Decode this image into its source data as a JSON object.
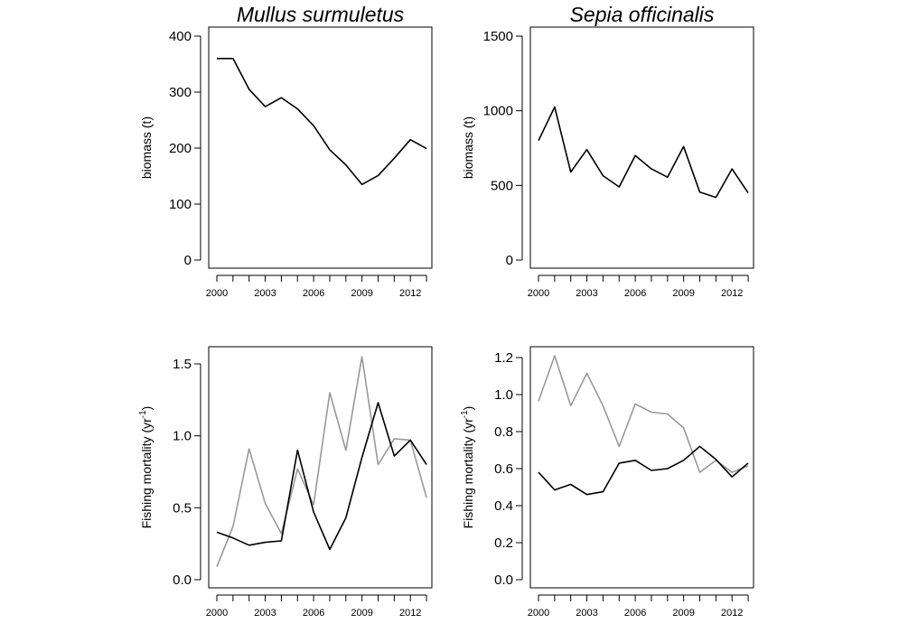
{
  "chart_data": [
    {
      "type": "line",
      "title": "Mullus surmuletus",
      "ylabel": "biomass (t)",
      "ylabel_sup": "",
      "ylabel_after": "",
      "x": [
        2000,
        2001,
        2002,
        2003,
        2004,
        2005,
        2006,
        2007,
        2008,
        2009,
        2010,
        2011,
        2012,
        2013
      ],
      "x_tick_labels": [
        "2000",
        "2003",
        "2006",
        "2009",
        "2012"
      ],
      "y_ticks": [
        0,
        100,
        200,
        300,
        400
      ],
      "y_tick_labels": [
        "0",
        "100",
        "200",
        "300",
        "400"
      ],
      "ylim": [
        0,
        400
      ],
      "series": [
        {
          "color": "#000000",
          "values": [
            360,
            360,
            305,
            274,
            290,
            270,
            240,
            197,
            170,
            135,
            151,
            182,
            215,
            199
          ]
        }
      ]
    },
    {
      "type": "line",
      "title": "Sepia officinalis",
      "ylabel": "biomass (t)",
      "ylabel_sup": "",
      "ylabel_after": "",
      "x": [
        2000,
        2001,
        2002,
        2003,
        2004,
        2005,
        2006,
        2007,
        2008,
        2009,
        2010,
        2011,
        2012,
        2013
      ],
      "x_tick_labels": [
        "2000",
        "2003",
        "2006",
        "2009",
        "2012"
      ],
      "y_ticks": [
        0,
        500,
        1000,
        1500
      ],
      "y_tick_labels": [
        "0",
        "500",
        "1000",
        "1500"
      ],
      "ylim": [
        0,
        1500
      ],
      "series": [
        {
          "color": "#000000",
          "values": [
            800,
            1025,
            590,
            740,
            565,
            490,
            700,
            610,
            555,
            760,
            455,
            420,
            610,
            450
          ]
        }
      ]
    },
    {
      "type": "line",
      "title": "",
      "ylabel": "Fishing mortality (yr",
      "ylabel_sup": "-1",
      "ylabel_after": ")",
      "x": [
        2000,
        2001,
        2002,
        2003,
        2004,
        2005,
        2006,
        2007,
        2008,
        2009,
        2010,
        2011,
        2012,
        2013
      ],
      "x_tick_labels": [
        "2000",
        "2003",
        "2006",
        "2009",
        "2012"
      ],
      "y_ticks": [
        0,
        0.5,
        1,
        1.5
      ],
      "y_tick_labels": [
        "0.0",
        "0.5",
        "1.0",
        "1.5"
      ],
      "ylim": [
        0,
        1.5
      ],
      "series": [
        {
          "color": "#999999",
          "values": [
            0.09,
            0.37,
            0.91,
            0.53,
            0.32,
            0.77,
            0.52,
            1.3,
            0.9,
            1.55,
            0.8,
            0.98,
            0.97,
            0.57
          ]
        },
        {
          "color": "#000000",
          "values": [
            0.33,
            0.29,
            0.24,
            0.26,
            0.27,
            0.9,
            0.47,
            0.21,
            0.43,
            0.85,
            1.23,
            0.86,
            0.97,
            0.8
          ]
        }
      ]
    },
    {
      "type": "line",
      "title": "",
      "ylabel": "Fishing mortality (yr",
      "ylabel_sup": "-1",
      "ylabel_after": ")",
      "x": [
        2000,
        2001,
        2002,
        2003,
        2004,
        2005,
        2006,
        2007,
        2008,
        2009,
        2010,
        2011,
        2012,
        2013
      ],
      "x_tick_labels": [
        "2000",
        "2003",
        "2006",
        "2009",
        "2012"
      ],
      "y_ticks": [
        0,
        0.2,
        0.4,
        0.6,
        0.8,
        1.0,
        1.2
      ],
      "y_tick_labels": [
        "0.0",
        "0.2",
        "0.4",
        "0.6",
        "0.8",
        "1.0",
        "1.2"
      ],
      "ylim": [
        0,
        1.2
      ],
      "series": [
        {
          "color": "#999999",
          "values": [
            0.965,
            1.21,
            0.94,
            1.115,
            0.94,
            0.72,
            0.95,
            0.905,
            0.895,
            0.82,
            0.58,
            0.645,
            0.58,
            0.615
          ]
        },
        {
          "color": "#000000",
          "values": [
            0.58,
            0.485,
            0.515,
            0.46,
            0.475,
            0.63,
            0.645,
            0.59,
            0.6,
            0.645,
            0.72,
            0.65,
            0.555,
            0.63
          ]
        }
      ]
    }
  ]
}
